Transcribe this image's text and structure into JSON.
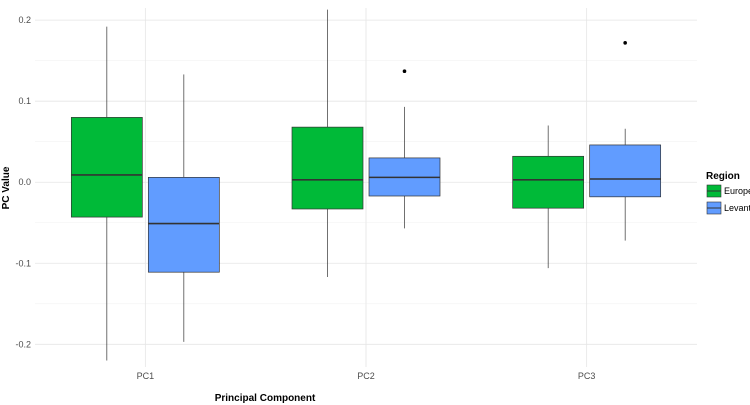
{
  "chart_data": {
    "type": "boxplot",
    "title": "",
    "xlabel": "Principal Component",
    "ylabel": "PC Value",
    "ylim": [
      -0.228,
      0.215
    ],
    "yticks": [
      -0.2,
      -0.1,
      0.0,
      0.1,
      0.2
    ],
    "ytick_labels": [
      "-0.2",
      "-0.1",
      "0.0",
      "0.1",
      "0.2"
    ],
    "categories": [
      "PC1",
      "PC2",
      "PC3"
    ],
    "legend": {
      "title": "Region",
      "position": "right"
    },
    "series": [
      {
        "name": "Europe",
        "color": "#00BA38",
        "boxes": [
          {
            "category": "PC1",
            "whisker_low": -0.22,
            "q1": -0.043,
            "median": 0.009,
            "q3": 0.08,
            "whisker_high": 0.192,
            "outliers": []
          },
          {
            "category": "PC2",
            "whisker_low": -0.117,
            "q1": -0.033,
            "median": 0.003,
            "q3": 0.068,
            "whisker_high": 0.213,
            "outliers": []
          },
          {
            "category": "PC3",
            "whisker_low": -0.106,
            "q1": -0.032,
            "median": 0.003,
            "q3": 0.032,
            "whisker_high": 0.07,
            "outliers": []
          }
        ]
      },
      {
        "name": "Levant",
        "color": "#619CFF",
        "boxes": [
          {
            "category": "PC1",
            "whisker_low": -0.197,
            "q1": -0.111,
            "median": -0.051,
            "q3": 0.006,
            "whisker_high": 0.133,
            "outliers": []
          },
          {
            "category": "PC2",
            "whisker_low": -0.057,
            "q1": -0.017,
            "median": 0.006,
            "q3": 0.03,
            "whisker_high": 0.093,
            "outliers": [
              0.137
            ]
          },
          {
            "category": "PC3",
            "whisker_low": -0.072,
            "q1": -0.018,
            "median": 0.004,
            "q3": 0.046,
            "whisker_high": 0.066,
            "outliers": [
              0.172
            ]
          }
        ]
      }
    ],
    "grid": true
  }
}
